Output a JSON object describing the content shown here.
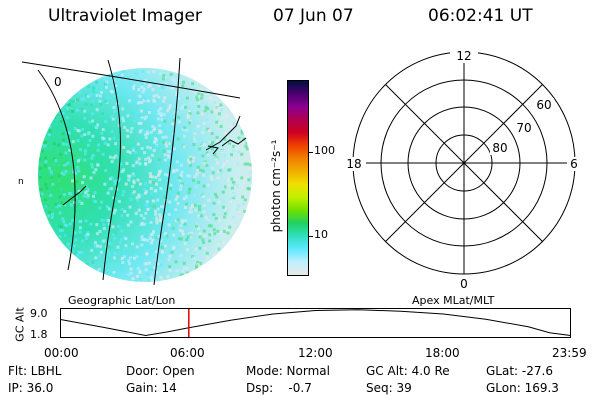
{
  "header": {
    "instrument": "Ultraviolet Imager",
    "date": "07 Jun 07",
    "time": "06:02:41 UT"
  },
  "left_panel": {
    "caption": "Geographic Lat/Lon",
    "grid_label": "0",
    "grid_label_left": "n"
  },
  "colorbar": {
    "unit": "photon cm⁻²s⁻¹",
    "ticks": [
      "100",
      "10"
    ],
    "colors": [
      "#001040",
      "#4a0070",
      "#8a0090",
      "#b00050",
      "#d00020",
      "#f04000",
      "#f08000",
      "#f0b000",
      "#f0e000",
      "#c0f000",
      "#70e000",
      "#20d060",
      "#30e0c0",
      "#60e8ff",
      "#c0f0ff",
      "#e8e8e8"
    ]
  },
  "right_panel": {
    "caption": "Apex MLat/MLT",
    "mlt_labels": {
      "top": "12",
      "right": "6",
      "bottom": "0",
      "left": "18"
    },
    "mlat_labels": [
      "60",
      "70",
      "80"
    ]
  },
  "altitude_plot": {
    "ylabel": "GC Alt",
    "yticks": [
      "9.0",
      "1.8"
    ],
    "xticks": [
      "00:00",
      "06:00",
      "12:00",
      "18:00",
      "23:59"
    ],
    "marker_time": "06:02"
  },
  "status": {
    "flt": "Flt: LBHL",
    "ip": "IP: 36.0",
    "door": "Door: Open",
    "gain": "Gain: 14",
    "mode": "Mode: Normal",
    "dsp": "Dsp:    -0.7",
    "gc_alt": "GC Alt: 4.0 Re",
    "seq": "Seq: 39",
    "glat": "GLat: -27.6",
    "glon": "GLon: 169.3"
  },
  "chart_data": {
    "type": "line",
    "title": "",
    "xlabel": "",
    "ylabel": "GC Alt",
    "x": [
      "00:00",
      "02:00",
      "04:00",
      "05:00",
      "06:00",
      "08:00",
      "10:00",
      "12:00",
      "14:00",
      "16:00",
      "18:00",
      "20:00",
      "22:00",
      "23:00",
      "23:59"
    ],
    "values": [
      6.4,
      4.2,
      1.8,
      2.8,
      4.0,
      6.2,
      8.0,
      9.0,
      9.2,
      8.8,
      8.0,
      6.5,
      4.3,
      2.6,
      1.8
    ],
    "ylim": [
      1.8,
      9.0
    ],
    "marker": "06:02"
  }
}
